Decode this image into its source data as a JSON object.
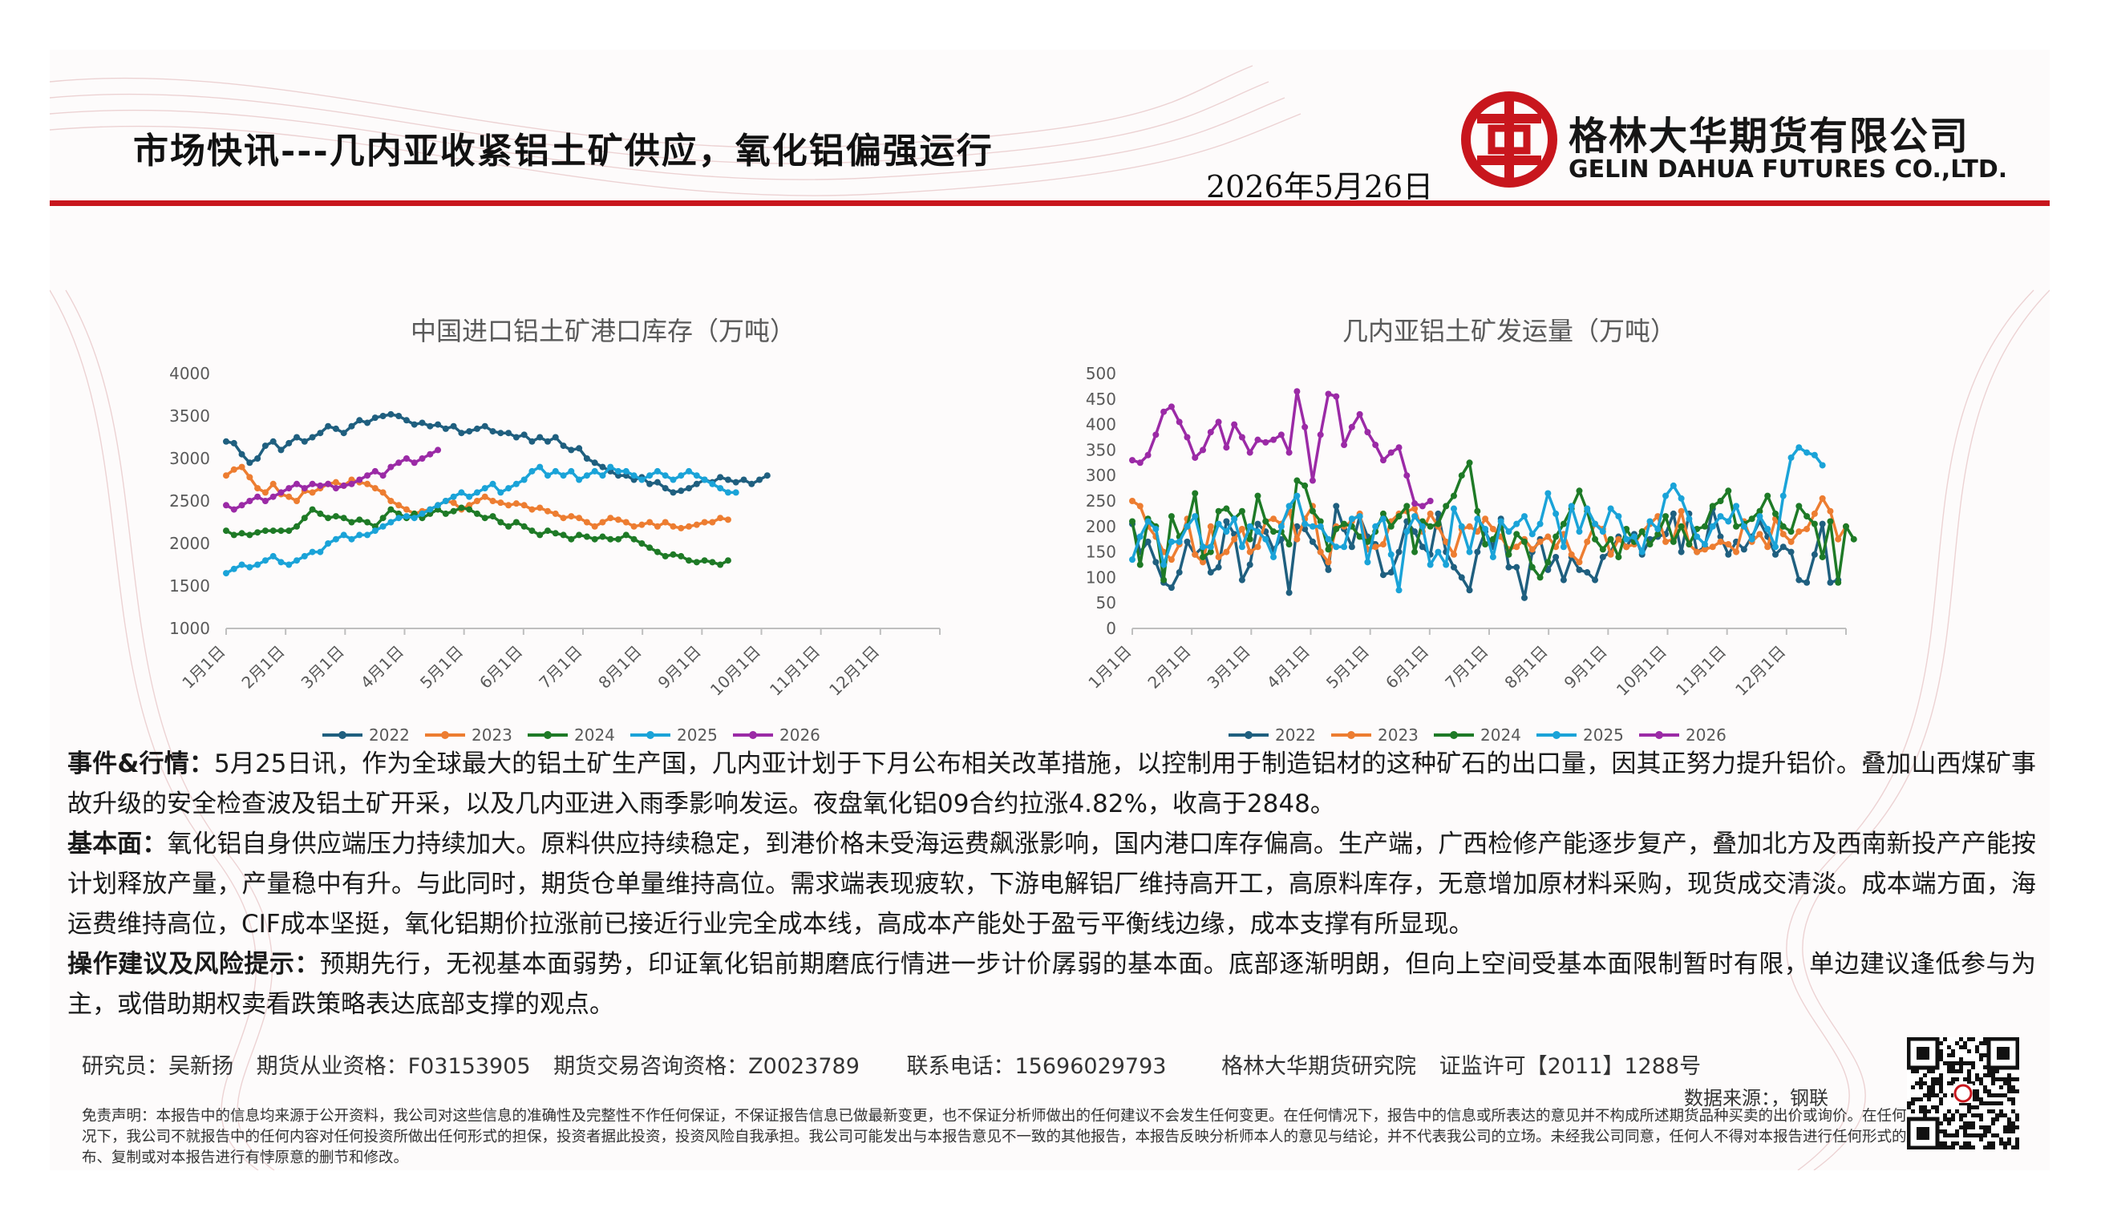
{
  "header": {
    "title": "市场快讯---几内亚收紧铝土矿供应，氧化铝偏强运行",
    "date": "2026年5月26日",
    "company_cn": "格林大华期货有限公司",
    "company_en": "GELIN DAHUA FUTURES CO.,LTD."
  },
  "colors": {
    "brand_red": "#c8161d",
    "s2022": "#1f5f7f",
    "s2023": "#ed7d31",
    "s2024": "#1e7a26",
    "s2025": "#1aa3d8",
    "s2026": "#9b2aa6"
  },
  "chart_data": [
    {
      "type": "line",
      "title": "中国进口铝土矿港口库存（万吨）",
      "ylim": [
        1000,
        4000
      ],
      "yticks": [
        "4000",
        "3500",
        "3000",
        "2500",
        "2000",
        "1500",
        "1000"
      ],
      "xticks": [
        "1月1日",
        "2月1日",
        "3月1日",
        "4月1日",
        "5月1日",
        "6月1日",
        "7月1日",
        "8月1日",
        "9月1日",
        "10月1日",
        "11月1日",
        "12月1日"
      ],
      "legend": "bottom",
      "series": [
        {
          "name": "2022",
          "values": [
            3200,
            3180,
            3050,
            2950,
            3000,
            3150,
            3200,
            3100,
            3180,
            3250,
            3200,
            3250,
            3300,
            3380,
            3350,
            3300,
            3380,
            3450,
            3420,
            3480,
            3500,
            3520,
            3500,
            3450,
            3400,
            3420,
            3380,
            3400,
            3350,
            3380,
            3300,
            3320,
            3350,
            3380,
            3320,
            3300,
            3300,
            3250,
            3280,
            3200,
            3250,
            3200,
            3250,
            3150,
            3100,
            3120,
            3000,
            2950,
            2900,
            2850,
            2800,
            2800,
            2750,
            2780,
            2700,
            2720,
            2650,
            2600,
            2620,
            2650,
            2700,
            2750,
            2720,
            2780,
            2750,
            2720,
            2750,
            2700,
            2750,
            2800
          ]
        },
        {
          "name": "2023",
          "values": [
            2800,
            2870,
            2900,
            2780,
            2650,
            2600,
            2700,
            2580,
            2550,
            2500,
            2620,
            2600,
            2650,
            2700,
            2720,
            2680,
            2750,
            2720,
            2700,
            2650,
            2600,
            2500,
            2450,
            2400,
            2350,
            2380,
            2400,
            2450,
            2500,
            2480,
            2400,
            2450,
            2500,
            2550,
            2500,
            2480,
            2450,
            2470,
            2450,
            2400,
            2420,
            2380,
            2350,
            2300,
            2320,
            2300,
            2250,
            2200,
            2250,
            2300,
            2280,
            2250,
            2200,
            2220,
            2250,
            2200,
            2250,
            2200,
            2180,
            2200,
            2220,
            2250,
            2250,
            2300,
            2280
          ]
        },
        {
          "name": "2024",
          "values": [
            2150,
            2100,
            2120,
            2100,
            2130,
            2150,
            2150,
            2150,
            2150,
            2200,
            2300,
            2400,
            2350,
            2300,
            2320,
            2300,
            2250,
            2280,
            2250,
            2200,
            2300,
            2400,
            2350,
            2300,
            2350,
            2300,
            2350,
            2400,
            2350,
            2380,
            2420,
            2400,
            2350,
            2300,
            2320,
            2250,
            2200,
            2250,
            2200,
            2150,
            2100,
            2150,
            2120,
            2100,
            2050,
            2100,
            2080,
            2050,
            2080,
            2050,
            2050,
            2100,
            2050,
            2000,
            1950,
            1900,
            1850,
            1870,
            1850,
            1800,
            1780,
            1800,
            1780,
            1750,
            1800
          ]
        },
        {
          "name": "2025",
          "values": [
            1650,
            1700,
            1750,
            1720,
            1750,
            1800,
            1850,
            1780,
            1750,
            1800,
            1850,
            1900,
            1900,
            2000,
            2050,
            2100,
            2050,
            2100,
            2100,
            2150,
            2200,
            2250,
            2300,
            2320,
            2300,
            2350,
            2400,
            2450,
            2500,
            2550,
            2600,
            2550,
            2600,
            2650,
            2700,
            2600,
            2650,
            2700,
            2750,
            2850,
            2900,
            2800,
            2850,
            2800,
            2850,
            2750,
            2800,
            2850,
            2800,
            2900,
            2850,
            2850,
            2800,
            2750,
            2800,
            2850,
            2800,
            2750,
            2800,
            2850,
            2800,
            2750,
            2700,
            2650,
            2600,
            2600
          ]
        },
        {
          "name": "2026",
          "values": [
            2450,
            2400,
            2450,
            2500,
            2550,
            2500,
            2550,
            2600,
            2650,
            2700,
            2650,
            2700,
            2680,
            2700,
            2650,
            2680,
            2700,
            2750,
            2800,
            2850,
            2800,
            2900,
            2950,
            3000,
            2950,
            3000,
            3050,
            3100
          ]
        }
      ]
    },
    {
      "type": "line",
      "title": "几内亚铝土矿发运量（万吨）",
      "ylim": [
        0,
        500
      ],
      "yticks": [
        "500",
        "450",
        "400",
        "350",
        "300",
        "250",
        "200",
        "150",
        "100",
        "50",
        "0"
      ],
      "xticks": [
        "1月1日",
        "2月1日",
        "3月1日",
        "4月1日",
        "5月1日",
        "6月1日",
        "7月1日",
        "8月1日",
        "9月1日",
        "10月1日",
        "11月1日",
        "12月1日"
      ],
      "legend": "bottom",
      "series": [
        {
          "name": "2022",
          "values": [
            205,
            150,
            170,
            130,
            90,
            80,
            110,
            170,
            145,
            160,
            110,
            120,
            210,
            185,
            95,
            125,
            205,
            190,
            155,
            175,
            70,
            200,
            195,
            170,
            150,
            115,
            240,
            195,
            160,
            220,
            180,
            165,
            105,
            110,
            150,
            210,
            190,
            160,
            145,
            225,
            150,
            120,
            100,
            75,
            150,
            190,
            160,
            215,
            120,
            120,
            60,
            150,
            175,
            115,
            140,
            95,
            140,
            115,
            110,
            95,
            140,
            150,
            180,
            160,
            185,
            145,
            175,
            180,
            185,
            225,
            150,
            225,
            150,
            160,
            235,
            180,
            145,
            170,
            155,
            180,
            210,
            180,
            145,
            160,
            150,
            95,
            90,
            145,
            205,
            90,
            95
          ]
        },
        {
          "name": "2023",
          "values": [
            250,
            240,
            200,
            180,
            150,
            135,
            165,
            215,
            145,
            130,
            200,
            140,
            150,
            175,
            195,
            150,
            160,
            210,
            215,
            205,
            230,
            175,
            215,
            240,
            150,
            130,
            200,
            200,
            210,
            225,
            155,
            160,
            165,
            210,
            225,
            230,
            235,
            190,
            225,
            200,
            170,
            145,
            195,
            200,
            190,
            215,
            195,
            180,
            155,
            160,
            175,
            155,
            170,
            180,
            160,
            185,
            145,
            130,
            170,
            205,
            195,
            145,
            175,
            160,
            165,
            190,
            205,
            220,
            170,
            175,
            230,
            165,
            150,
            155,
            160,
            170,
            165,
            150,
            210,
            170,
            185,
            160,
            215,
            185,
            170,
            190,
            195,
            225,
            255,
            230,
            175,
            200
          ]
        },
        {
          "name": "2024",
          "values": [
            210,
            125,
            215,
            200,
            95,
            220,
            180,
            200,
            265,
            140,
            150,
            230,
            235,
            215,
            230,
            175,
            260,
            210,
            190,
            190,
            165,
            290,
            280,
            230,
            210,
            155,
            195,
            205,
            200,
            180,
            170,
            190,
            225,
            200,
            220,
            240,
            150,
            210,
            200,
            205,
            240,
            260,
            300,
            325,
            230,
            165,
            175,
            200,
            145,
            185,
            170,
            120,
            100,
            130,
            180,
            205,
            235,
            270,
            230,
            175,
            155,
            175,
            140,
            195,
            170,
            190,
            165,
            185,
            220,
            170,
            200,
            165,
            195,
            200,
            240,
            250,
            270,
            200,
            205,
            215,
            230,
            260,
            225,
            200,
            190,
            240,
            220,
            205,
            140,
            210,
            90,
            200,
            175
          ]
        },
        {
          "name": "2025",
          "values": [
            135,
            180,
            210,
            195,
            125,
            170,
            170,
            200,
            220,
            160,
            160,
            205,
            190,
            215,
            160,
            200,
            190,
            175,
            140,
            200,
            240,
            260,
            205,
            200,
            200,
            175,
            160,
            160,
            215,
            220,
            130,
            200,
            215,
            145,
            75,
            190,
            220,
            200,
            125,
            150,
            125,
            235,
            200,
            150,
            215,
            195,
            140,
            210,
            190,
            205,
            220,
            185,
            205,
            265,
            225,
            160,
            240,
            190,
            235,
            205,
            190,
            235,
            220,
            175,
            180,
            150,
            210,
            195,
            260,
            280,
            255,
            215,
            180,
            165,
            200,
            220,
            210,
            240,
            200,
            175,
            220,
            195,
            160,
            260,
            335,
            355,
            345,
            340,
            320
          ]
        },
        {
          "name": "2026",
          "values": [
            330,
            325,
            340,
            380,
            425,
            435,
            405,
            375,
            335,
            350,
            385,
            405,
            355,
            400,
            375,
            345,
            370,
            365,
            370,
            380,
            345,
            465,
            395,
            290,
            380,
            460,
            455,
            360,
            395,
            420,
            385,
            360,
            330,
            345,
            355,
            300,
            245,
            240,
            250
          ]
        }
      ]
    }
  ],
  "body": {
    "p1_label": "事件&行情：",
    "p1_text": "5月25日讯，作为全球最大的铝土矿生产国，几内亚计划于下月公布相关改革措施，以控制用于制造铝材的这种矿石的出口量，因其正努力提升铝价。叠加山西煤矿事故升级的安全检查波及铝土矿开采，以及几内亚进入雨季影响发运。夜盘氧化铝09合约拉涨4.82%，收高于2848。",
    "p2_label": "基本面：",
    "p2_text": "氧化铝自身供应端压力持续加大。原料供应持续稳定，到港价格未受海运费飙涨影响，国内港口库存偏高。生产端，广西检修产能逐步复产，叠加北方及西南新投产产能按计划释放产量，产量稳中有升。与此同时，期货仓单量维持高位。需求端表现疲软，下游电解铝厂维持高开工，高原料库存，无意增加原材料采购，现货成交清淡。成本端方面，海运费维持高位，CIF成本坚挺，氧化铝期价拉涨前已接近行业完全成本线，高成本产能处于盈亏平衡线边缘，成本支撑有所显现。",
    "p3_label": "操作建议及风险提示：",
    "p3_text": "预期先行，无视基本面弱势，印证氧化铝前期磨底行情进一步计价孱弱的基本面。底部逐渐明朗，但向上空间受基本面限制暂时有限，单边建议逢低参与为主，或借助期权卖看跌策略表达底部支撑的观点。"
  },
  "footer": {
    "researcher": "研究员：吴新扬",
    "qualification": "期货从业资格：F03153905",
    "advisory": "期货交易咨询资格：Z0023789",
    "phone": "联系电话：15696029793",
    "institute": "格林大华期货研究院",
    "license": "证监许可【2011】1288号",
    "source": "数据来源：，钢联",
    "disclaimer": "免责声明：本报告中的信息均来源于公开资料，我公司对这些信息的准确性及完整性不作任何保证，不保证报告信息已做最新变更，也不保证分析师做出的任何建议不会发生任何变更。在任何情况下，报告中的信息或所表达的意见并不构成所述期货品种买卖的出价或询价。在任何情况下，我公司不就报告中的任何内容对任何投资所做出任何形式的担保，投资者据此投资，投资风险自我承担。我公司可能发出与本报告意见不一致的其他报告，本报告反映分析师本人的意见与结论，并不代表我公司的立场。未经我公司同意，任何人不得对本报告进行任何形式的发布、复制或对本报告进行有悖原意的删节和修改。"
  }
}
